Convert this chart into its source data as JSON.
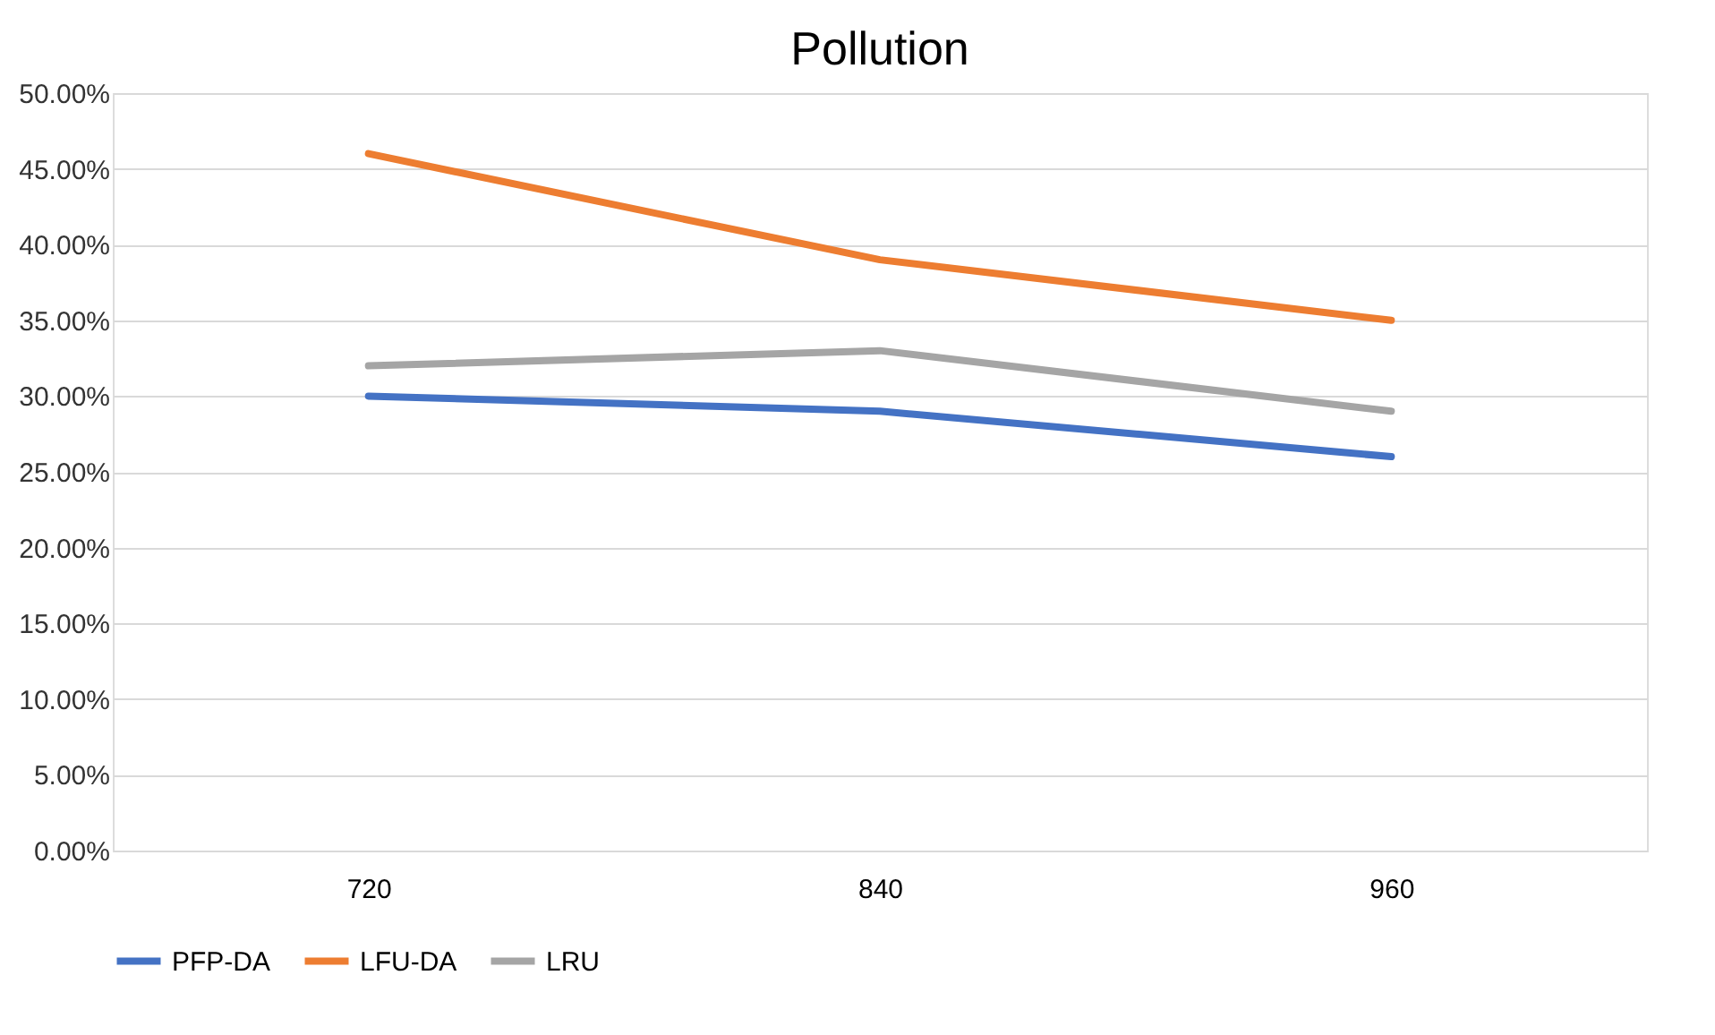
{
  "chart_data": {
    "type": "line",
    "title": "Pollution",
    "categories": [
      "720",
      "840",
      "960"
    ],
    "series": [
      {
        "name": "PFP-DA",
        "color": "#4472c4",
        "values": [
          30,
          29,
          26
        ]
      },
      {
        "name": "LFU-DA",
        "color": "#ed7d31",
        "values": [
          46,
          39,
          35
        ]
      },
      {
        "name": "LRU",
        "color": "#a5a5a5",
        "values": [
          32,
          33,
          29
        ]
      }
    ],
    "ylim": [
      0,
      50
    ],
    "yticks": [
      {
        "value": 0,
        "label": "0.00%"
      },
      {
        "value": 5,
        "label": "5.00%"
      },
      {
        "value": 10,
        "label": "10.00%"
      },
      {
        "value": 15,
        "label": "15.00%"
      },
      {
        "value": 20,
        "label": "20.00%"
      },
      {
        "value": 25,
        "label": "25.00%"
      },
      {
        "value": 30,
        "label": "30.00%"
      },
      {
        "value": 35,
        "label": "35.00%"
      },
      {
        "value": 40,
        "label": "40.00%"
      },
      {
        "value": 45,
        "label": "45.00%"
      },
      {
        "value": 50,
        "label": "50.00%"
      }
    ],
    "grid": "y",
    "legend": "bottom",
    "marker": "none",
    "line_style": "solid"
  }
}
